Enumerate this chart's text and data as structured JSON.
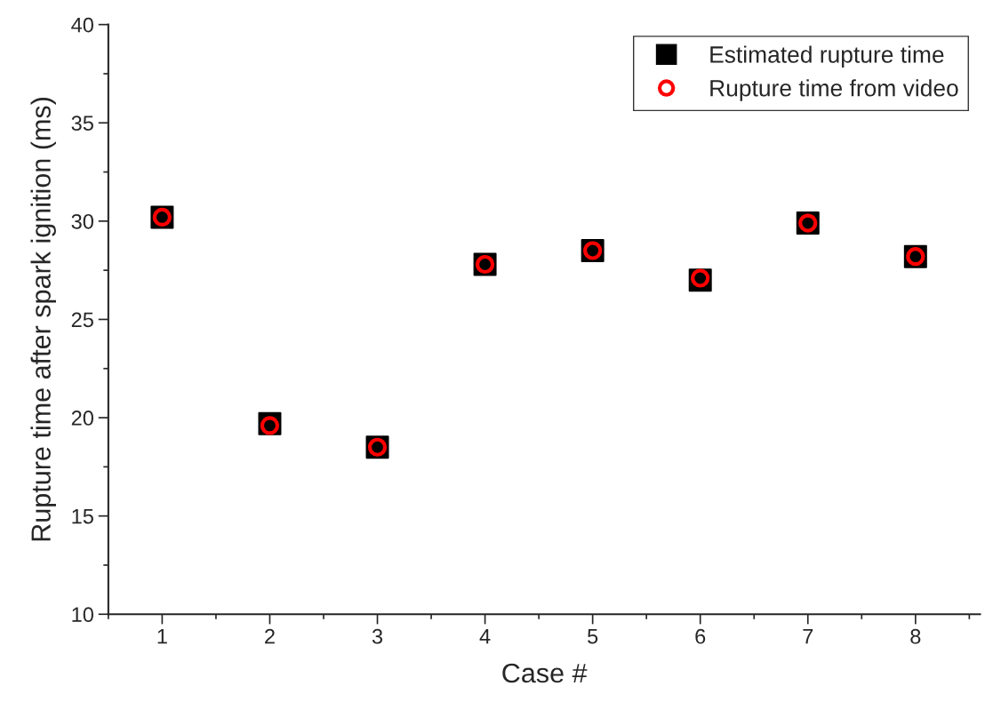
{
  "chart_data": {
    "type": "scatter",
    "xlabel": "Case #",
    "ylabel": "Rupture time after spark ignition (ms)",
    "x": [
      1,
      2,
      3,
      4,
      5,
      6,
      7,
      8
    ],
    "series": [
      {
        "name": "Estimated rupture time",
        "color": "#000000",
        "marker": "square",
        "values": [
          30.2,
          19.7,
          18.5,
          27.8,
          28.5,
          27.0,
          29.9,
          28.2
        ]
      },
      {
        "name": "Rupture time from video",
        "color": "#ff0000",
        "marker": "circle",
        "values": [
          30.2,
          19.6,
          18.5,
          27.8,
          28.5,
          27.1,
          29.9,
          28.2
        ]
      }
    ],
    "xlim": [
      0.5,
      8.6
    ],
    "xticks": [
      1,
      2,
      3,
      4,
      5,
      6,
      7,
      8
    ],
    "ylim": [
      10,
      40
    ],
    "yticks": [
      10,
      15,
      20,
      25,
      30,
      35,
      40
    ],
    "grid": false,
    "legend": "top right"
  }
}
